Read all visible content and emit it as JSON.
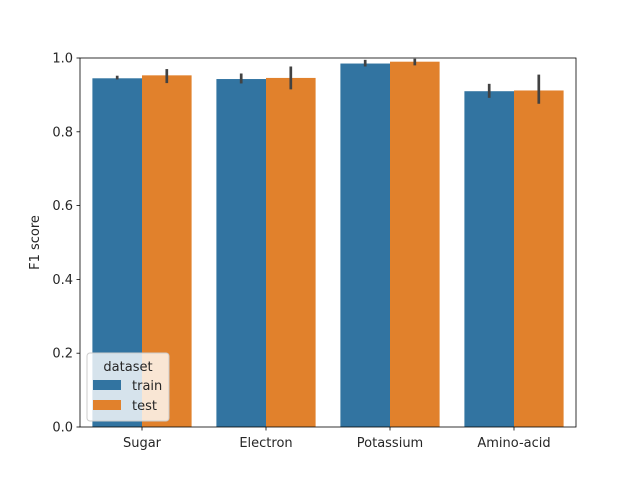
{
  "chart_data": {
    "type": "bar",
    "title": "",
    "xlabel": "",
    "ylabel": "F1 score",
    "ylim": [
      0,
      1.0
    ],
    "yticks": [
      "0.0",
      "0.2",
      "0.4",
      "0.6",
      "0.8",
      "1.0"
    ],
    "categories": [
      "Sugar",
      "Electron",
      "Potassium",
      "Amino-acid"
    ],
    "series": [
      {
        "name": "train",
        "color": "#3274a1",
        "values": [
          0.945,
          0.943,
          0.985,
          0.91
        ],
        "err_low": [
          0.942,
          0.931,
          0.977,
          0.892
        ],
        "err_high": [
          0.952,
          0.958,
          0.995,
          0.93
        ]
      },
      {
        "name": "test",
        "color": "#e1812c",
        "values": [
          0.953,
          0.946,
          0.99,
          0.912
        ],
        "err_low": [
          0.932,
          0.915,
          0.98,
          0.876
        ],
        "err_high": [
          0.97,
          0.977,
          0.998,
          0.955
        ]
      }
    ],
    "legend": {
      "title": "dataset",
      "placement": "lower-left"
    },
    "grid": false,
    "error_bar_color": "#424242"
  }
}
